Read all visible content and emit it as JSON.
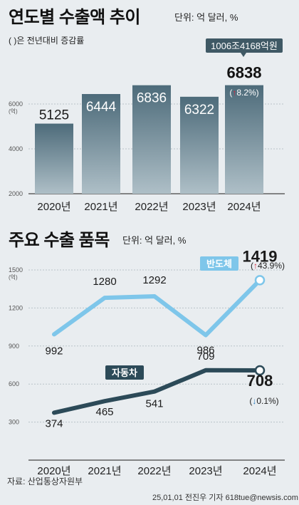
{
  "chart1": {
    "title": "연도별 수출액 추이",
    "unit": "단위: 억 달러, %",
    "note": "( )은 전년대비 증감률",
    "y_unit": "(억)",
    "callout": "1006조4168억원",
    "highlight_change_arrow": "↑",
    "highlight_change": "8.2%)",
    "highlight_paren": "(",
    "chart_data": {
      "type": "bar",
      "categories": [
        "2020년",
        "2021년",
        "2022년",
        "2023년",
        "2024년"
      ],
      "values": [
        5125,
        6444,
        6836,
        6322,
        6838
      ],
      "ylim": [
        2000,
        7500
      ],
      "yticks": [
        2000,
        4000,
        6000
      ],
      "change_2024": 8.2
    }
  },
  "chart2": {
    "title": "주요 수출 품목",
    "unit": "단위: 억 달러, %",
    "y_unit": "(억)",
    "chart_data": {
      "type": "line",
      "x": [
        "2020년",
        "2021년",
        "2022년",
        "2023년",
        "2024년"
      ],
      "ylim": [
        0,
        1500
      ],
      "yticks": [
        300,
        600,
        900,
        1200,
        1500
      ],
      "series": [
        {
          "name": "반도체",
          "values": [
            992,
            1280,
            1292,
            986,
            1419
          ],
          "change_2024": 43.9,
          "color": "#7ec6ea"
        },
        {
          "name": "자동차",
          "values": [
            374,
            465,
            541,
            709,
            708
          ],
          "change_2024": 0.1,
          "color": "#2c4a58"
        }
      ]
    },
    "semi_change_arrow": "↑",
    "semi_change": "43.9%)",
    "auto_change_arrow": "↓",
    "auto_change": "0.1%)",
    "paren": "("
  },
  "footer": {
    "source": "자료: 산업통상자원부",
    "credit": "25,01,01 전진우 기자 618tue@newsis.com"
  },
  "colors": {
    "bar_top": "#4d6b7a",
    "bar_bottom": "#9fb3bd",
    "up": "#d7263d",
    "down": "#2f7fc0"
  }
}
